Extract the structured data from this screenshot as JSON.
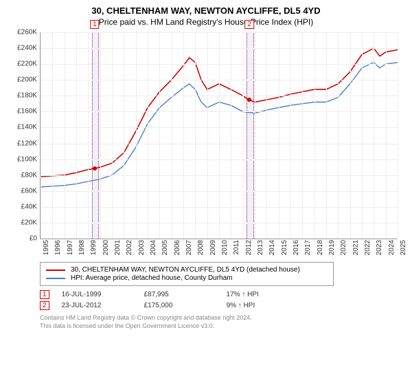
{
  "title": "30, CHELTENHAM WAY, NEWTON AYCLIFFE, DL5 4YD",
  "subtitle": "Price paid vs. HM Land Registry's House Price Index (HPI)",
  "chart": {
    "type": "line",
    "background_color": "#ffffff",
    "grid_color": "#eeeeee",
    "axis_color": "#999999",
    "ylim": [
      0,
      260000
    ],
    "ytick_step": 20000,
    "yticks": [
      "£0",
      "£20K",
      "£40K",
      "£60K",
      "£80K",
      "£100K",
      "£120K",
      "£140K",
      "£160K",
      "£180K",
      "£200K",
      "£220K",
      "£240K",
      "£260K"
    ],
    "xlim": [
      1995,
      2025
    ],
    "xticks": [
      "1995",
      "1996",
      "1997",
      "1998",
      "1999",
      "2000",
      "2001",
      "2002",
      "2003",
      "2004",
      "2005",
      "2006",
      "2007",
      "2008",
      "2009",
      "2010",
      "2011",
      "2012",
      "2013",
      "2014",
      "2015",
      "2016",
      "2017",
      "2018",
      "2019",
      "2020",
      "2021",
      "2022",
      "2023",
      "2024",
      "2025"
    ],
    "label_fontsize": 10,
    "series": [
      {
        "name": "30, CHELTENHAM WAY, NEWTON AYCLIFFE, DL5 4YD (detached house)",
        "color": "#d40000",
        "line_width": 1.6,
        "data": [
          [
            1995,
            78000
          ],
          [
            1996,
            79000
          ],
          [
            1997,
            80000
          ],
          [
            1998,
            83000
          ],
          [
            1999,
            87000
          ],
          [
            1999.5,
            88000
          ],
          [
            2000,
            90000
          ],
          [
            2001,
            95000
          ],
          [
            2002,
            108000
          ],
          [
            2003,
            135000
          ],
          [
            2004,
            165000
          ],
          [
            2005,
            185000
          ],
          [
            2006,
            200000
          ],
          [
            2007,
            218000
          ],
          [
            2007.5,
            228000
          ],
          [
            2008,
            222000
          ],
          [
            2008.5,
            200000
          ],
          [
            2009,
            188000
          ],
          [
            2010,
            195000
          ],
          [
            2011,
            188000
          ],
          [
            2012,
            180000
          ],
          [
            2012.5,
            175000
          ],
          [
            2013,
            172000
          ],
          [
            2014,
            175000
          ],
          [
            2015,
            178000
          ],
          [
            2016,
            182000
          ],
          [
            2017,
            185000
          ],
          [
            2018,
            188000
          ],
          [
            2019,
            188000
          ],
          [
            2020,
            195000
          ],
          [
            2021,
            210000
          ],
          [
            2022,
            232000
          ],
          [
            2023,
            240000
          ],
          [
            2023.5,
            230000
          ],
          [
            2024,
            235000
          ],
          [
            2025,
            238000
          ]
        ]
      },
      {
        "name": "HPI: Average price, detached house, County Durham",
        "color": "#4a7cc9",
        "line_width": 1.4,
        "data": [
          [
            1995,
            65000
          ],
          [
            1996,
            66000
          ],
          [
            1997,
            67000
          ],
          [
            1998,
            69000
          ],
          [
            1999,
            72000
          ],
          [
            2000,
            75000
          ],
          [
            2001,
            80000
          ],
          [
            2002,
            92000
          ],
          [
            2003,
            115000
          ],
          [
            2004,
            145000
          ],
          [
            2005,
            165000
          ],
          [
            2006,
            178000
          ],
          [
            2007,
            190000
          ],
          [
            2007.5,
            195000
          ],
          [
            2008,
            188000
          ],
          [
            2008.5,
            172000
          ],
          [
            2009,
            165000
          ],
          [
            2010,
            172000
          ],
          [
            2011,
            168000
          ],
          [
            2012,
            160000
          ],
          [
            2013,
            158000
          ],
          [
            2014,
            162000
          ],
          [
            2015,
            165000
          ],
          [
            2016,
            168000
          ],
          [
            2017,
            170000
          ],
          [
            2018,
            172000
          ],
          [
            2019,
            172000
          ],
          [
            2020,
            178000
          ],
          [
            2021,
            195000
          ],
          [
            2022,
            215000
          ],
          [
            2023,
            222000
          ],
          [
            2023.5,
            215000
          ],
          [
            2024,
            220000
          ],
          [
            2025,
            222000
          ]
        ]
      }
    ],
    "sale_bands": [
      {
        "num": "1",
        "x_start": 1999.3,
        "x_end": 1999.8,
        "marker_x": 1999.55,
        "marker_y": 88000
      },
      {
        "num": "2",
        "x_start": 2012.3,
        "x_end": 2012.8,
        "marker_x": 2012.55,
        "marker_y": 175000
      }
    ]
  },
  "legend": {
    "items": [
      {
        "color": "#d40000",
        "label": "30, CHELTENHAM WAY, NEWTON AYCLIFFE, DL5 4YD (detached house)"
      },
      {
        "color": "#4a7cc9",
        "label": "HPI: Average price, detached house, County Durham"
      }
    ]
  },
  "sales": [
    {
      "num": "1",
      "date": "16-JUL-1999",
      "price": "£87,995",
      "delta": "17% ↑ HPI"
    },
    {
      "num": "2",
      "date": "23-JUL-2012",
      "price": "£175,000",
      "delta": "9% ↑ HPI"
    }
  ],
  "footnote_line1": "Contains HM Land Registry data © Crown copyright and database right 2024.",
  "footnote_line2": "This data is licensed under the Open Government Licence v3.0."
}
